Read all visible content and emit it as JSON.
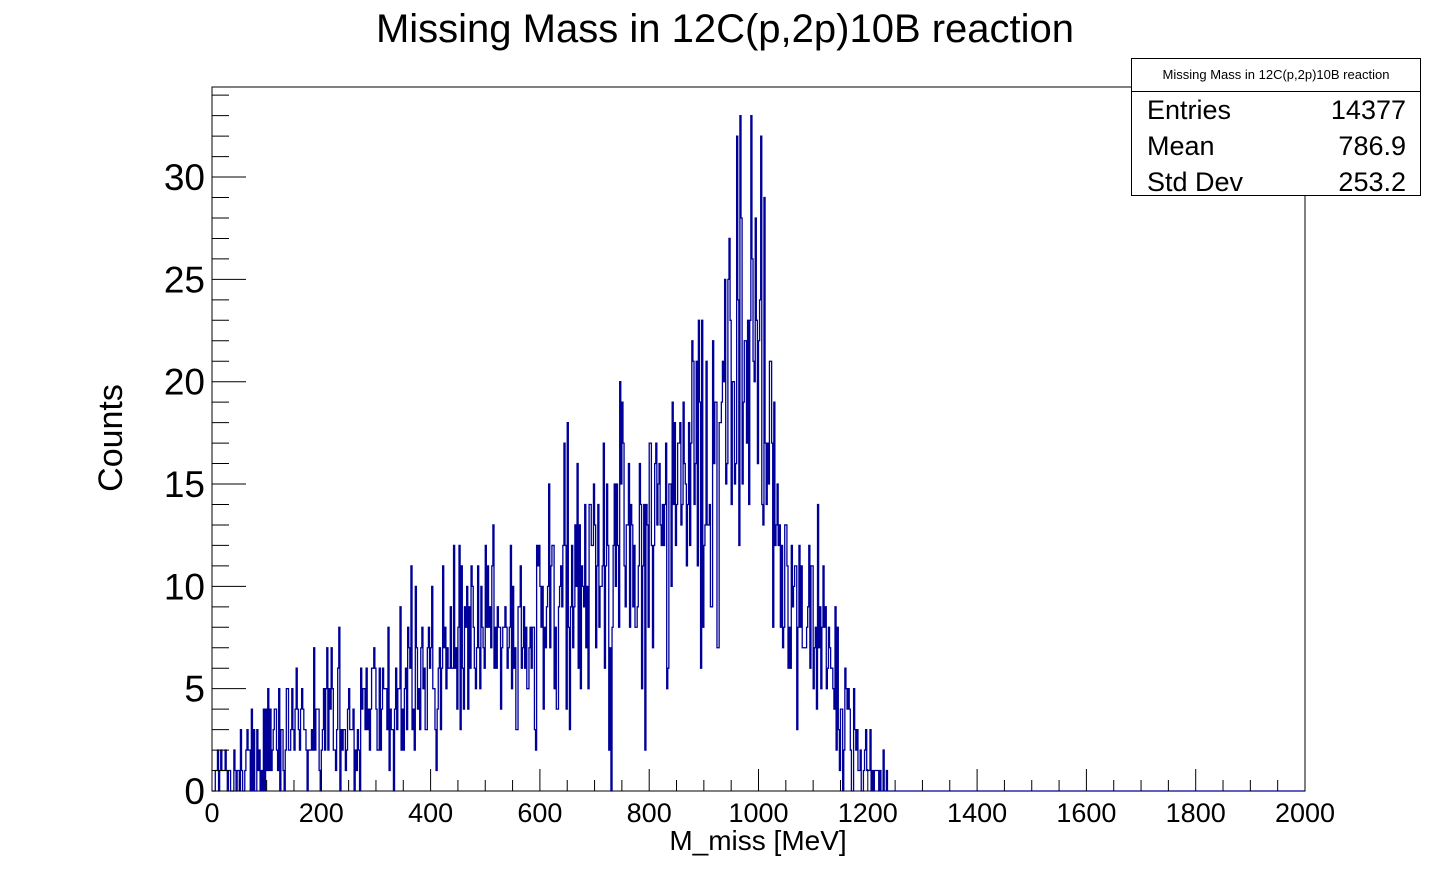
{
  "chart_data": {
    "type": "bar",
    "title": "Missing Mass in 12C(p,2p)10B reaction",
    "xlabel": "M_miss [MeV]",
    "ylabel": "Counts",
    "xlim": [
      0,
      2000
    ],
    "ylim": [
      0,
      34.4
    ],
    "x_ticks": [
      "0",
      "200",
      "400",
      "600",
      "800",
      "1000",
      "1200",
      "1400",
      "1600",
      "1800",
      "2000"
    ],
    "y_ticks": [
      "0",
      "5",
      "10",
      "15",
      "20",
      "25",
      "30"
    ],
    "grid": false,
    "legend": "none",
    "bin_width": 2,
    "series_color": "#000099",
    "profile": {
      "x": [
        0,
        100,
        200,
        300,
        400,
        500,
        600,
        700,
        800,
        900,
        950,
        980,
        1000,
        1030,
        1060,
        1100,
        1150,
        1190,
        1205,
        1220,
        1240
      ],
      "y": [
        0.5,
        1.8,
        3.0,
        4.0,
        5.8,
        7.2,
        8.6,
        10.2,
        12.0,
        15.0,
        18.5,
        24.0,
        22.0,
        14.0,
        10.0,
        8.5,
        4.0,
        1.5,
        0.8,
        0.3,
        0
      ],
      "peak": {
        "x": 986,
        "y": 33
      }
    }
  },
  "stats": {
    "title": "Missing Mass in 12C(p,2p)10B reaction",
    "rows": [
      {
        "label": "Entries",
        "value": "14377"
      },
      {
        "label": "Mean",
        "value": "786.9"
      },
      {
        "label": "Std Dev",
        "value": "253.2"
      }
    ]
  }
}
